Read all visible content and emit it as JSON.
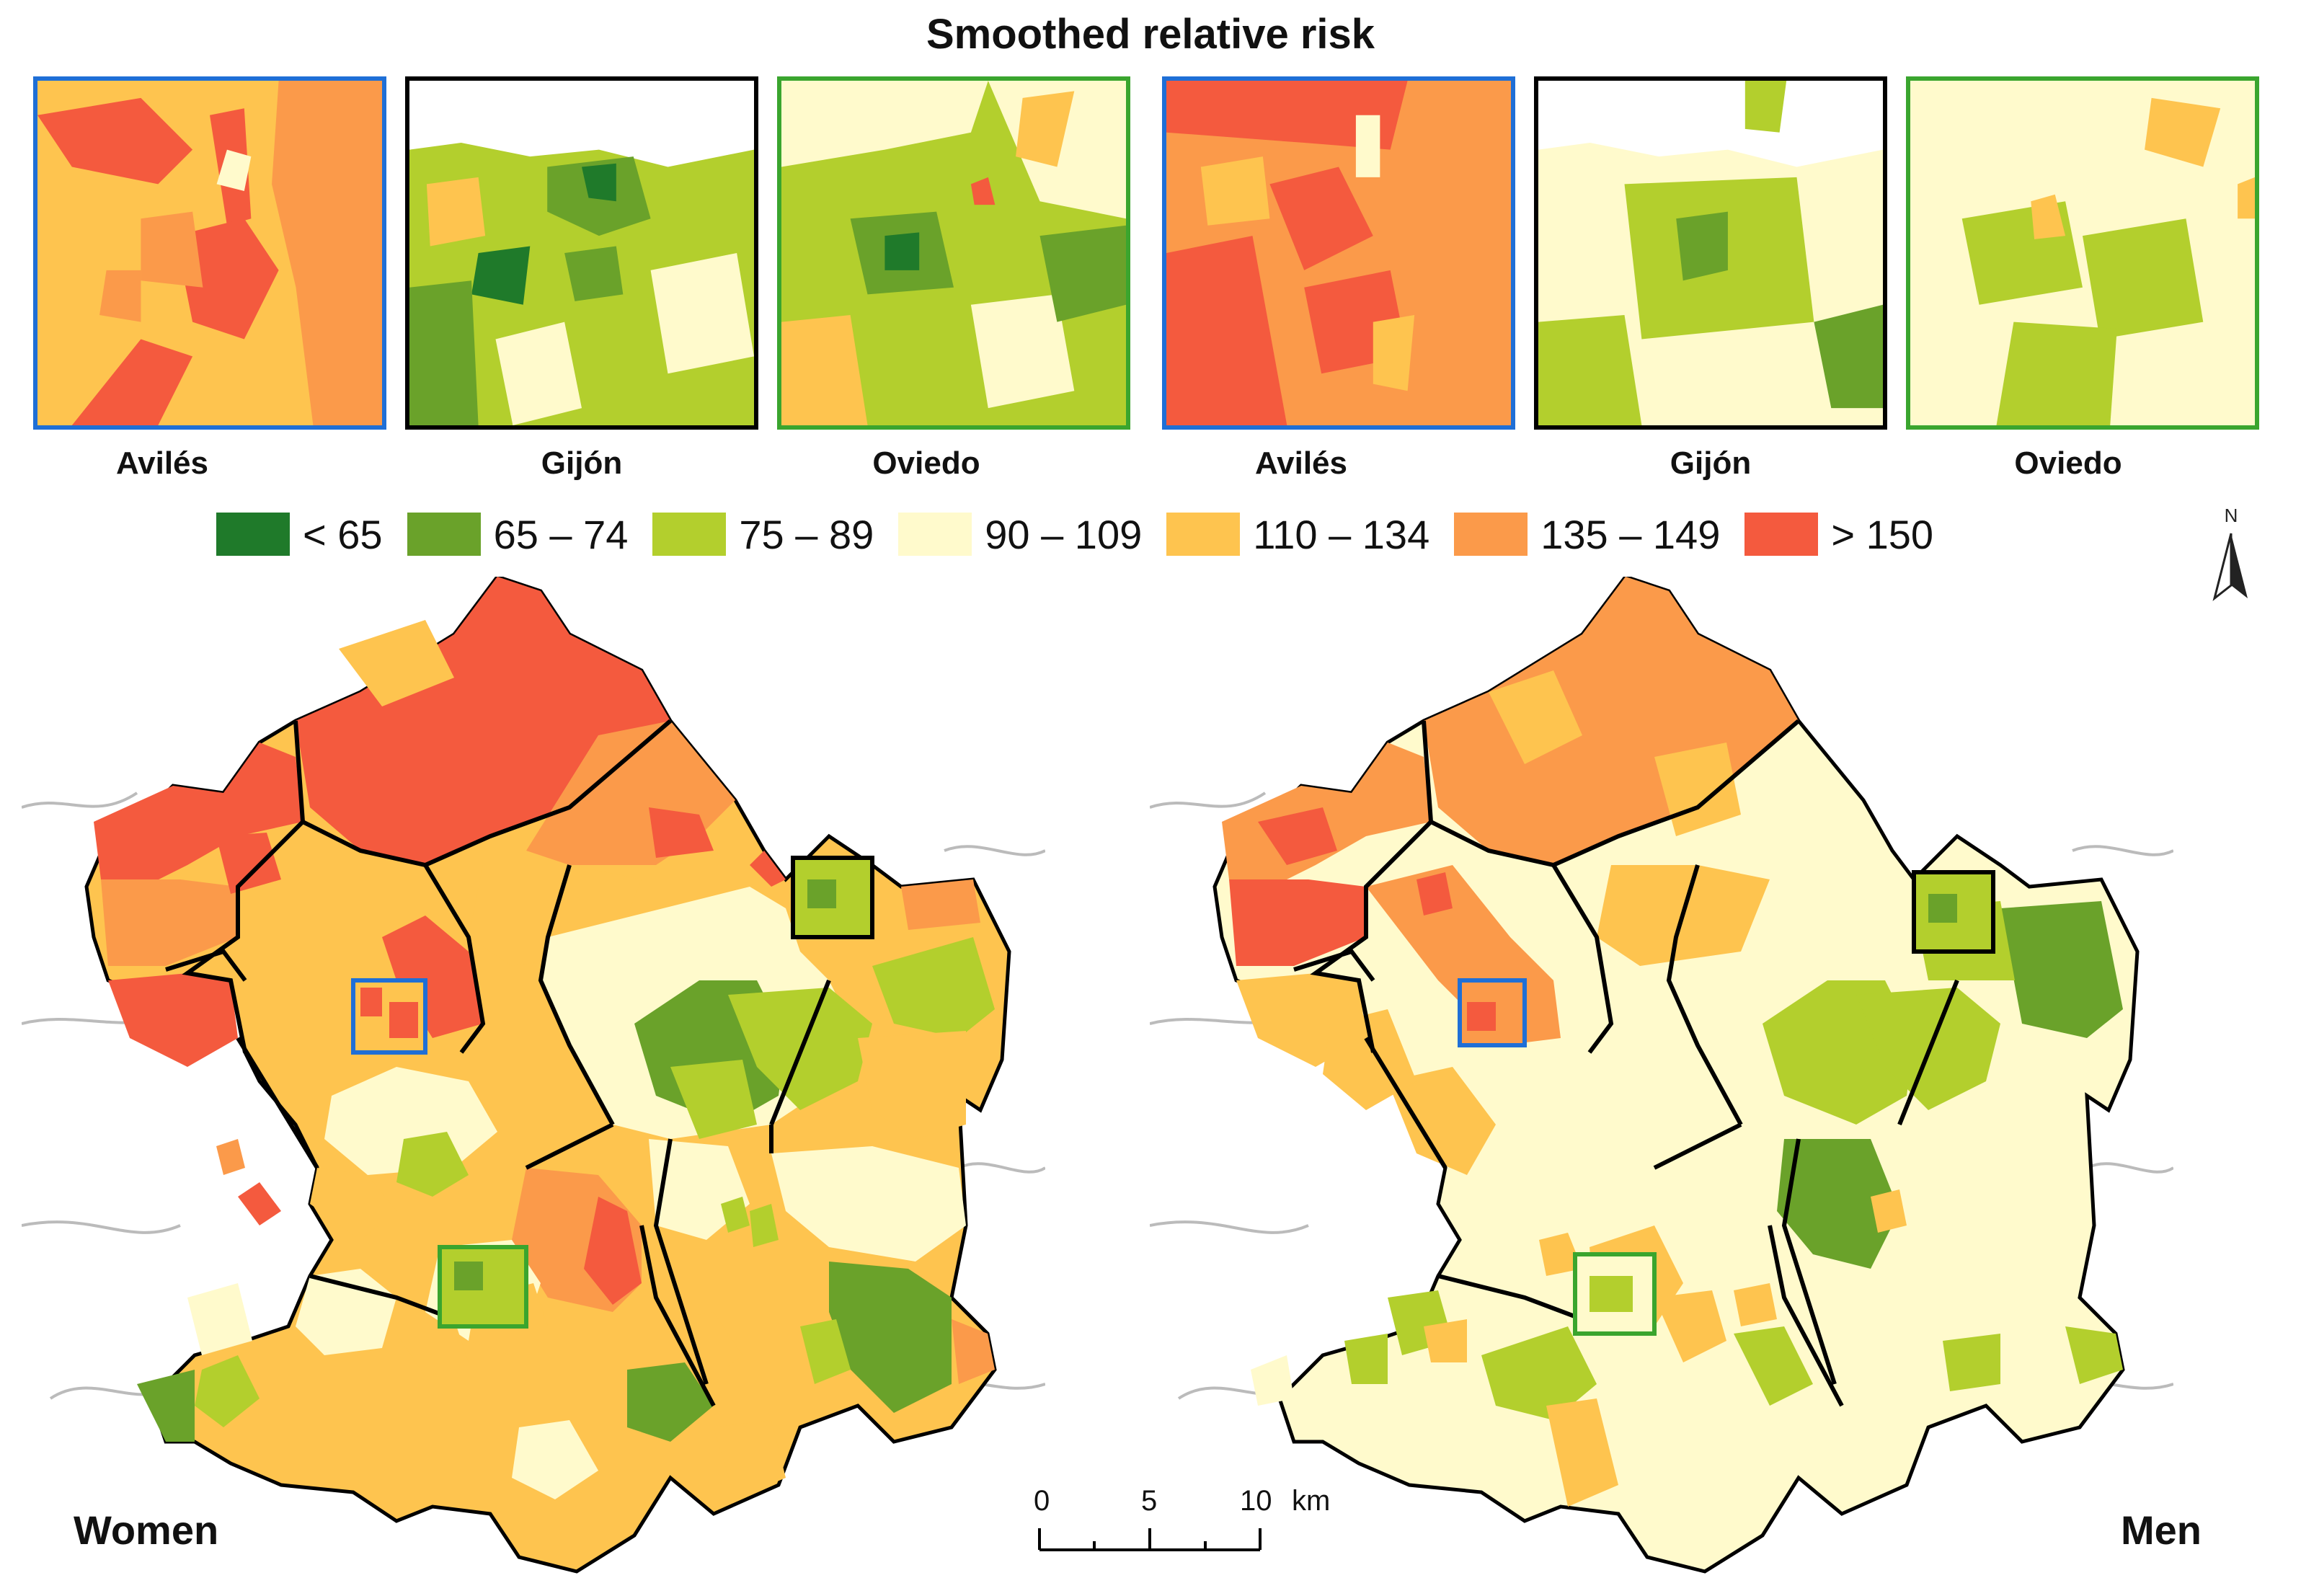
{
  "title": "Smoothed relative risk",
  "colors": {
    "lt65": "#1f7a2a",
    "c65_74": "#6aa22a",
    "c75_89": "#b3cf2d",
    "c90_109": "#fffacc",
    "c110_134": "#fec44f",
    "c135_149": "#fb9a4a",
    "gt150": "#f45a3e",
    "frame_aviles": "#1f6fd6",
    "frame_gijon": "#000000",
    "frame_oviedo": "#3aa52e"
  },
  "insets": [
    {
      "label": "Avilés",
      "frame": "blue"
    },
    {
      "label": "Gijón",
      "frame": "black"
    },
    {
      "label": "Oviedo",
      "frame": "green"
    },
    {
      "label": "Avilés",
      "frame": "blue"
    },
    {
      "label": "Gijón",
      "frame": "black"
    },
    {
      "label": "Oviedo",
      "frame": "green"
    }
  ],
  "legend": [
    {
      "label": "< 65",
      "color_key": "lt65"
    },
    {
      "label": "65 – 74",
      "color_key": "c65_74"
    },
    {
      "label": "75 – 89",
      "color_key": "c75_89"
    },
    {
      "label": "90 – 109",
      "color_key": "c90_109"
    },
    {
      "label": "110 – 134",
      "color_key": "c110_134"
    },
    {
      "label": "135 – 149",
      "color_key": "c135_149"
    },
    {
      "label": "> 150",
      "color_key": "gt150"
    }
  ],
  "maps": {
    "women_label": "Women",
    "men_label": "Men"
  },
  "north_arrow": {
    "letter": "N"
  },
  "scale_bar": {
    "ticks": [
      "0",
      "5",
      "10"
    ],
    "unit": "km"
  }
}
